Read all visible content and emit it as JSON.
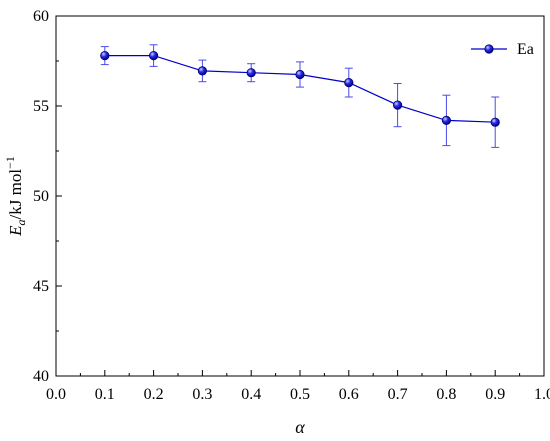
{
  "chart_data": {
    "type": "line",
    "x": [
      0.1,
      0.2,
      0.3,
      0.4,
      0.5,
      0.6,
      0.7,
      0.8,
      0.9
    ],
    "series": [
      {
        "name": "Ea",
        "values": [
          57.8,
          57.8,
          56.95,
          56.85,
          56.75,
          56.3,
          55.05,
          54.2,
          54.1
        ],
        "error": [
          0.5,
          0.6,
          0.6,
          0.5,
          0.7,
          0.8,
          1.2,
          1.4,
          1.4
        ],
        "color": "#0000cc"
      }
    ],
    "xlabel": "α",
    "ylabel": {
      "main": "E",
      "sub": "a",
      "unit": "/kJ mol",
      "sup": "−1"
    },
    "xlim": [
      0.0,
      1.0
    ],
    "ylim": [
      40,
      60
    ],
    "xticks": [
      "0.0",
      "0.1",
      "0.2",
      "0.3",
      "0.4",
      "0.5",
      "0.6",
      "0.7",
      "0.8",
      "0.9",
      "1.0"
    ],
    "yticks": [
      "40",
      "45",
      "50",
      "55",
      "60"
    ],
    "legend": "top-right",
    "grid": false
  }
}
